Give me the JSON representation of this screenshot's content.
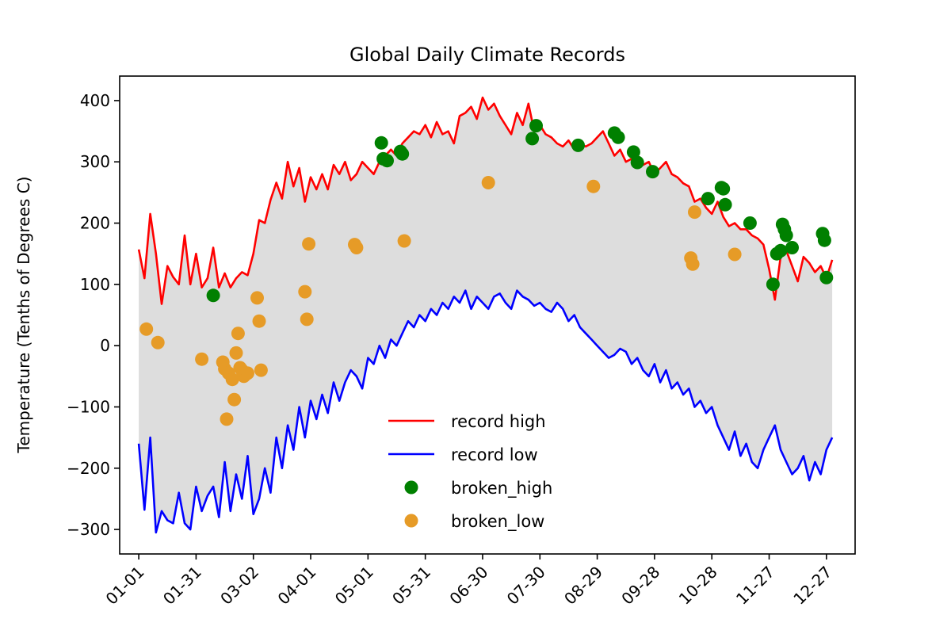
{
  "chart_data": {
    "type": "line",
    "title": "Global Daily Climate Records",
    "xlabel": "",
    "ylabel": "Temperature (Tenths of Degrees C)",
    "ylim": [
      -340,
      440
    ],
    "xlim": [
      -10,
      375
    ],
    "yticks": [
      400,
      300,
      200,
      100,
      0,
      -100,
      -200,
      -300
    ],
    "yticklabels": [
      "400",
      "300",
      "200",
      "100",
      "0",
      "−100",
      "−200",
      "−300"
    ],
    "xticks": [
      0,
      30,
      60,
      90,
      120,
      150,
      180,
      210,
      240,
      270,
      300,
      330,
      360
    ],
    "xticklabels": [
      "01-01",
      "01-31",
      "03-02",
      "04-01",
      "05-01",
      "05-31",
      "06-30",
      "07-30",
      "08-29",
      "09-28",
      "10-28",
      "11-27",
      "12-27"
    ],
    "grid": false,
    "legend_position": "lower center",
    "fill_between": {
      "color": "#dddddd",
      "between": [
        "record high",
        "record low"
      ]
    },
    "series": [
      {
        "name": "record high",
        "kind": "line",
        "color": "#ff0000",
        "x": [
          0,
          3,
          6,
          9,
          12,
          15,
          18,
          21,
          24,
          27,
          30,
          33,
          36,
          39,
          42,
          45,
          48,
          51,
          54,
          57,
          60,
          63,
          66,
          69,
          72,
          75,
          78,
          81,
          84,
          87,
          90,
          93,
          96,
          99,
          102,
          105,
          108,
          111,
          114,
          117,
          120,
          123,
          126,
          129,
          132,
          135,
          138,
          141,
          144,
          147,
          150,
          153,
          156,
          159,
          162,
          165,
          168,
          171,
          174,
          177,
          180,
          183,
          186,
          189,
          192,
          195,
          198,
          201,
          204,
          207,
          210,
          213,
          216,
          219,
          222,
          225,
          228,
          231,
          234,
          237,
          240,
          243,
          246,
          249,
          252,
          255,
          258,
          261,
          264,
          267,
          270,
          273,
          276,
          279,
          282,
          285,
          288,
          291,
          294,
          297,
          300,
          303,
          306,
          309,
          312,
          315,
          318,
          321,
          324,
          327,
          330,
          333,
          336,
          339,
          342,
          345,
          348,
          351,
          354,
          357,
          360,
          363
        ],
        "y": [
          157,
          110,
          215,
          150,
          68,
          130,
          112,
          100,
          180,
          100,
          150,
          95,
          110,
          160,
          95,
          118,
          95,
          110,
          120,
          115,
          150,
          205,
          200,
          238,
          266,
          240,
          300,
          260,
          290,
          235,
          275,
          255,
          280,
          255,
          295,
          280,
          300,
          270,
          280,
          300,
          290,
          280,
          300,
          310,
          320,
          310,
          330,
          340,
          350,
          345,
          360,
          340,
          365,
          345,
          350,
          330,
          375,
          380,
          390,
          370,
          405,
          385,
          395,
          375,
          360,
          345,
          380,
          360,
          395,
          350,
          360,
          345,
          340,
          330,
          325,
          335,
          320,
          330,
          325,
          330,
          340,
          350,
          330,
          310,
          320,
          300,
          305,
          290,
          295,
          300,
          280,
          290,
          300,
          280,
          275,
          265,
          260,
          235,
          240,
          225,
          215,
          235,
          210,
          195,
          200,
          190,
          190,
          180,
          175,
          165,
          125,
          75,
          145,
          155,
          130,
          105,
          145,
          135,
          120,
          130,
          110,
          140
        ]
      },
      {
        "name": "record low",
        "kind": "line",
        "color": "#0000ff",
        "x": [
          0,
          3,
          6,
          9,
          12,
          15,
          18,
          21,
          24,
          27,
          30,
          33,
          36,
          39,
          42,
          45,
          48,
          51,
          54,
          57,
          60,
          63,
          66,
          69,
          72,
          75,
          78,
          81,
          84,
          87,
          90,
          93,
          96,
          99,
          102,
          105,
          108,
          111,
          114,
          117,
          120,
          123,
          126,
          129,
          132,
          135,
          138,
          141,
          144,
          147,
          150,
          153,
          156,
          159,
          162,
          165,
          168,
          171,
          174,
          177,
          180,
          183,
          186,
          189,
          192,
          195,
          198,
          201,
          204,
          207,
          210,
          213,
          216,
          219,
          222,
          225,
          228,
          231,
          234,
          237,
          240,
          243,
          246,
          249,
          252,
          255,
          258,
          261,
          264,
          267,
          270,
          273,
          276,
          279,
          282,
          285,
          288,
          291,
          294,
          297,
          300,
          303,
          306,
          309,
          312,
          315,
          318,
          321,
          324,
          327,
          330,
          333,
          336,
          339,
          342,
          345,
          348,
          351,
          354,
          357,
          360,
          363
        ],
        "y": [
          -160,
          -268,
          -150,
          -305,
          -270,
          -285,
          -290,
          -240,
          -290,
          -300,
          -230,
          -270,
          -245,
          -230,
          -280,
          -190,
          -270,
          -210,
          -250,
          -180,
          -275,
          -250,
          -200,
          -240,
          -150,
          -200,
          -130,
          -170,
          -100,
          -150,
          -90,
          -120,
          -80,
          -110,
          -60,
          -90,
          -60,
          -40,
          -50,
          -70,
          -20,
          -30,
          0,
          -20,
          10,
          0,
          20,
          40,
          30,
          50,
          40,
          60,
          50,
          70,
          60,
          80,
          70,
          90,
          60,
          80,
          70,
          60,
          80,
          85,
          70,
          60,
          90,
          80,
          75,
          65,
          70,
          60,
          55,
          70,
          60,
          40,
          50,
          30,
          20,
          10,
          0,
          -10,
          -20,
          -15,
          -5,
          -10,
          -30,
          -20,
          -40,
          -50,
          -30,
          -60,
          -40,
          -70,
          -60,
          -80,
          -70,
          -100,
          -90,
          -110,
          -100,
          -130,
          -150,
          -170,
          -140,
          -180,
          -160,
          -190,
          -200,
          -170,
          -150,
          -130,
          -170,
          -190,
          -210,
          -200,
          -180,
          -220,
          -190,
          -210,
          -170,
          -150
        ]
      },
      {
        "name": "broken_high",
        "kind": "scatter",
        "color": "#008000",
        "x": [
          39,
          127,
          128,
          130,
          137,
          138,
          206,
          208,
          230,
          249,
          251,
          259,
          261,
          269,
          298,
          305,
          306,
          307,
          320,
          332,
          334,
          336,
          337,
          338,
          339,
          342,
          358,
          359,
          360
        ],
        "y": [
          82,
          331,
          305,
          302,
          317,
          313,
          338,
          359,
          327,
          347,
          340,
          316,
          299,
          284,
          240,
          258,
          256,
          230,
          200,
          100,
          150,
          155,
          198,
          190,
          180,
          160,
          183,
          172,
          111
        ]
      },
      {
        "name": "broken_low",
        "kind": "scatter",
        "color": "#e69b27",
        "x": [
          4,
          10,
          33,
          44,
          45,
          46,
          47,
          49,
          50,
          51,
          52,
          53,
          54,
          55,
          56,
          57,
          62,
          63,
          64,
          87,
          88,
          89,
          113,
          114,
          139,
          183,
          238,
          289,
          290,
          291,
          312
        ],
        "y": [
          27,
          5,
          -22,
          -27,
          -38,
          -120,
          -45,
          -55,
          -88,
          -12,
          20,
          -36,
          -40,
          -50,
          -47,
          -45,
          78,
          40,
          -40,
          88,
          43,
          166,
          165,
          160,
          171,
          266,
          260,
          143,
          133,
          218,
          149
        ]
      }
    ]
  }
}
